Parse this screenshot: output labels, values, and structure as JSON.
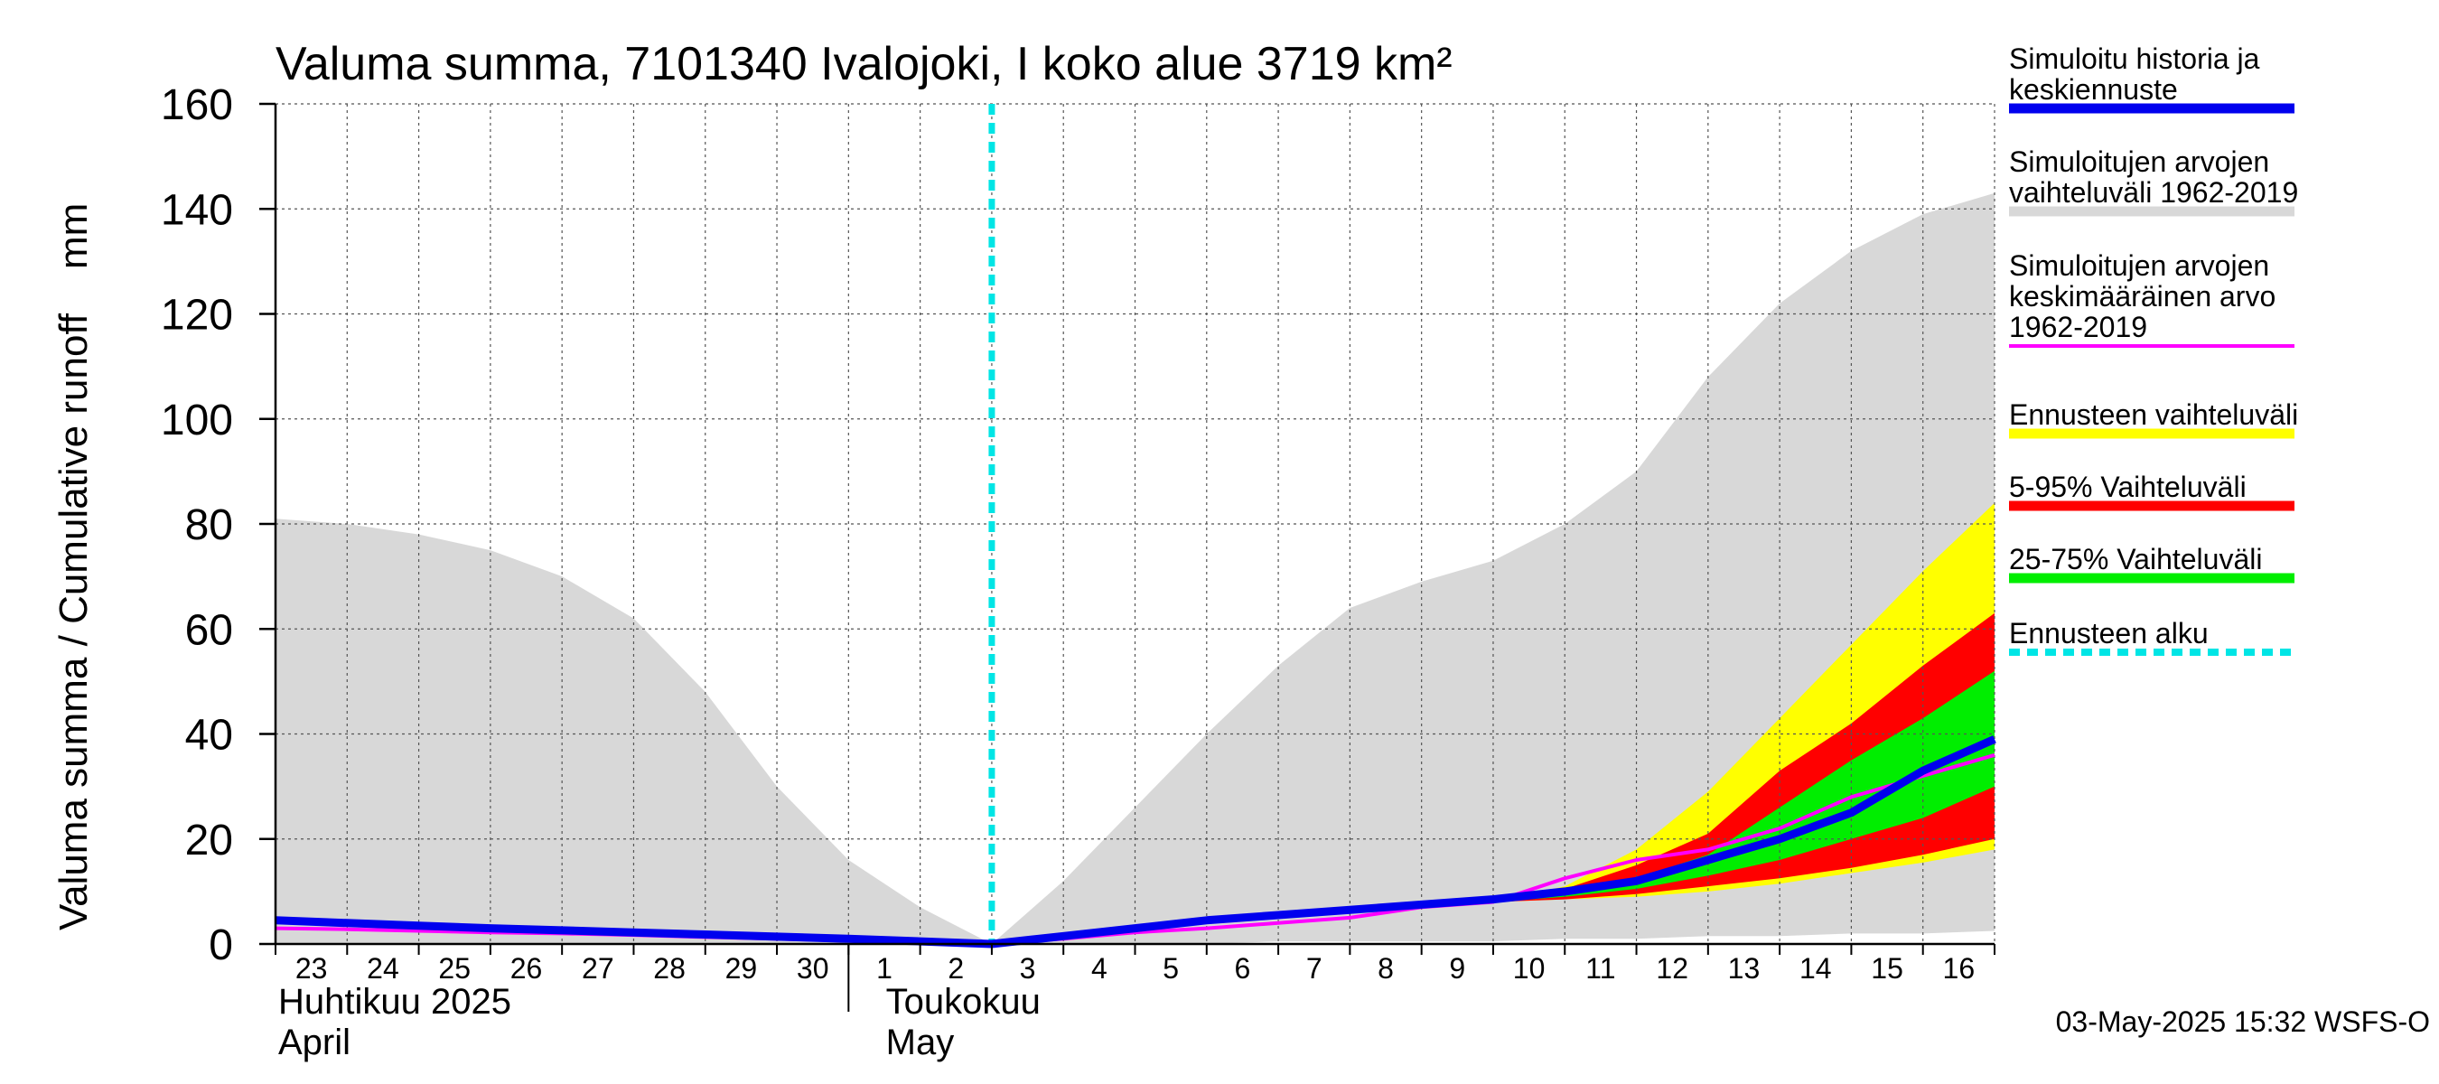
{
  "chart_data": {
    "type": "area",
    "title": "Valuma summa, 7101340 Ivalojoki, I koko alue 3719 km²",
    "ylabel": "Valuma summa / Cumulative runoff    mm",
    "ylim": [
      0,
      160
    ],
    "yticks": [
      0,
      20,
      40,
      60,
      80,
      100,
      120,
      140,
      160
    ],
    "grid": true,
    "legend_position": "right",
    "x": [
      "2025-04-23",
      "2025-04-24",
      "2025-04-25",
      "2025-04-26",
      "2025-04-27",
      "2025-04-28",
      "2025-04-29",
      "2025-04-30",
      "2025-05-01",
      "2025-05-02",
      "2025-05-03",
      "2025-05-04",
      "2025-05-05",
      "2025-05-06",
      "2025-05-07",
      "2025-05-08",
      "2025-05-09",
      "2025-05-10",
      "2025-05-11",
      "2025-05-12",
      "2025-05-13",
      "2025-05-14",
      "2025-05-15",
      "2025-05-16",
      "2025-05-17"
    ],
    "day_labels": [
      "23",
      "24",
      "25",
      "26",
      "27",
      "28",
      "29",
      "30",
      "1",
      "2",
      "3",
      "4",
      "5",
      "6",
      "7",
      "8",
      "9",
      "10",
      "11",
      "12",
      "13",
      "14",
      "15",
      "16"
    ],
    "month_labels": [
      {
        "fi": "Huhtikuu  2025",
        "en": "April"
      },
      {
        "fi": "Toukokuu",
        "en": "May"
      }
    ],
    "forecast_start": "2025-05-03",
    "footer": "03-May-2025 15:32 WSFS-O",
    "colors": {
      "history_range": "#d8d8d8",
      "forecast_range": "#ffff00",
      "range_5_95": "#ff0000",
      "range_25_75": "#00ee00",
      "mean": "#ff00ff",
      "simulated": "#0000ee",
      "forecast_start": "#00e5e5"
    },
    "series": [
      {
        "name": "Simuloitujen arvojen vaihteluväli 1962-2019",
        "kind": "band",
        "color_key": "history_range",
        "upper": [
          81,
          80,
          78,
          75,
          70,
          62,
          48,
          30,
          16,
          7,
          0,
          12,
          26,
          40,
          53,
          64,
          69,
          73,
          80,
          90,
          108,
          122,
          132,
          139,
          143
        ],
        "lower": [
          0,
          0,
          0,
          0,
          0,
          0,
          0,
          0,
          0,
          0,
          0,
          0,
          0,
          0,
          0.5,
          0.5,
          0.5,
          0.5,
          1,
          1,
          1.5,
          1.5,
          2,
          2,
          2.5
        ]
      },
      {
        "name": "Ennusteen vaihteluväli",
        "kind": "band",
        "color_key": "forecast_range",
        "x": [
          "2025-05-10",
          "2025-05-11",
          "2025-05-12",
          "2025-05-13",
          "2025-05-14",
          "2025-05-15",
          "2025-05-16",
          "2025-05-17"
        ],
        "upper": [
          8,
          11,
          18,
          29,
          43,
          57,
          71,
          84
        ],
        "lower": [
          8,
          8.5,
          9,
          10,
          11.5,
          13.5,
          15.5,
          18
        ]
      },
      {
        "name": "5-95% Vaihteluväli",
        "kind": "band",
        "color_key": "range_5_95",
        "x": [
          "2025-05-10",
          "2025-05-11",
          "2025-05-12",
          "2025-05-13",
          "2025-05-14",
          "2025-05-15",
          "2025-05-16",
          "2025-05-17"
        ],
        "upper": [
          8,
          10.5,
          15,
          21,
          33,
          42,
          53,
          63
        ],
        "lower": [
          8,
          8.5,
          9.5,
          11,
          12.5,
          14.5,
          17,
          20
        ]
      },
      {
        "name": "25-75% Vaihteluväli",
        "kind": "band",
        "color_key": "range_25_75",
        "x": [
          "2025-05-10",
          "2025-05-11",
          "2025-05-12",
          "2025-05-13",
          "2025-05-14",
          "2025-05-15",
          "2025-05-16",
          "2025-05-17"
        ],
        "upper": [
          8,
          9.5,
          12.5,
          17,
          26,
          35,
          43,
          52
        ],
        "lower": [
          8,
          9,
          10.5,
          13,
          16,
          20,
          24,
          30
        ]
      },
      {
        "name": "Simuloitujen arvojen keskimääräinen arvo 1962-2019",
        "kind": "line",
        "color_key": "mean",
        "values": [
          3,
          2.8,
          2.5,
          2.2,
          2,
          1.7,
          1.3,
          1,
          0.6,
          0.3,
          0,
          1,
          2.2,
          3,
          4,
          5,
          7,
          8,
          12.5,
          16,
          18,
          22,
          28,
          32,
          36
        ]
      },
      {
        "name": "Simuloitu historia ja keskiennuste",
        "kind": "line",
        "color_key": "simulated",
        "values": [
          4.5,
          4,
          3.5,
          3,
          2.6,
          2.2,
          1.8,
          1.4,
          1,
          0.5,
          0,
          1.5,
          3,
          4.5,
          5.5,
          6.5,
          7.5,
          8.5,
          10,
          12,
          16,
          20,
          25,
          33,
          39
        ]
      }
    ],
    "legend": [
      {
        "label": "Simuloitu historia ja\nkeskiennuste",
        "color_key": "simulated",
        "style": "line"
      },
      {
        "label": "Simuloitujen arvojen\nvaihteluväli 1962-2019",
        "color_key": "history_range",
        "style": "line"
      },
      {
        "label": "Simuloitujen arvojen\nkeskimääräinen arvo\n   1962-2019",
        "color_key": "mean",
        "style": "thin"
      },
      {
        "label": "Ennusteen vaihteluväli",
        "color_key": "forecast_range",
        "style": "line"
      },
      {
        "label": "5-95% Vaihteluväli",
        "color_key": "range_5_95",
        "style": "line"
      },
      {
        "label": "25-75% Vaihteluväli",
        "color_key": "range_25_75",
        "style": "line"
      },
      {
        "label": "Ennusteen alku",
        "color_key": "forecast_start",
        "style": "dashed"
      }
    ]
  }
}
